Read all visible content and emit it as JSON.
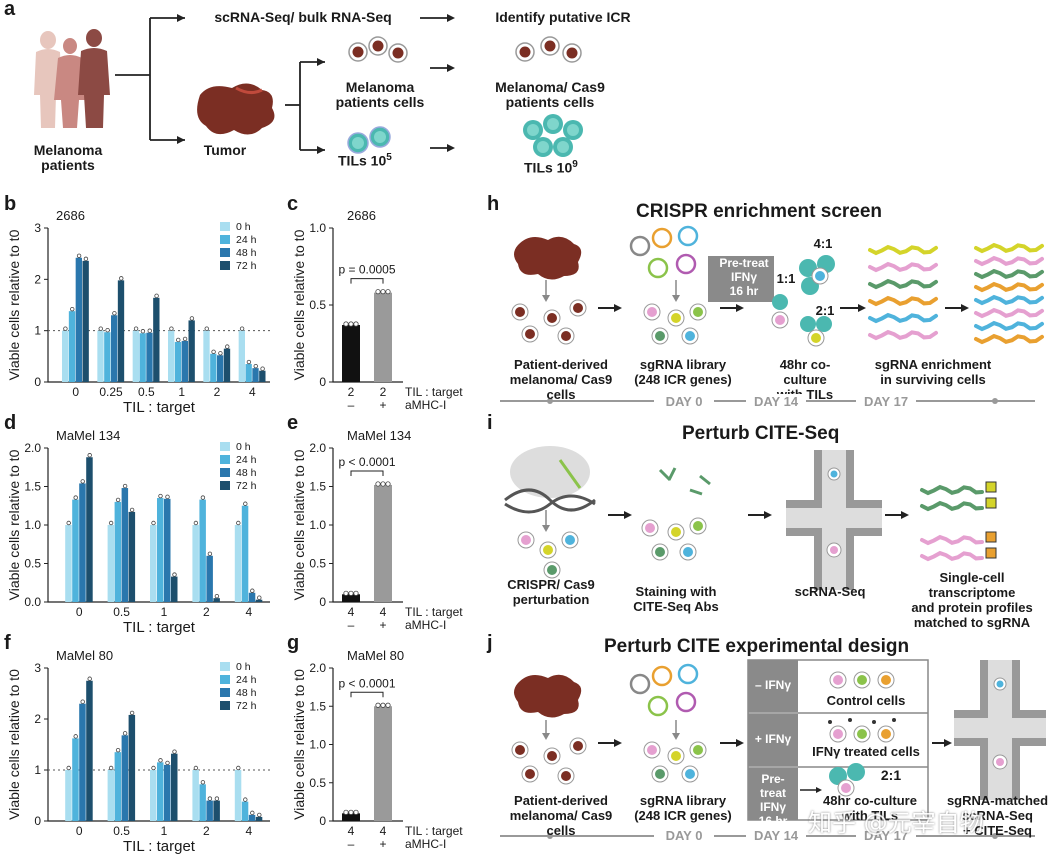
{
  "panel_labels": {
    "a": "a",
    "b": "b",
    "c": "c",
    "d": "d",
    "e": "e",
    "f": "f",
    "g": "g",
    "h": "h",
    "i": "i",
    "j": "j"
  },
  "panel_a": {
    "patients": "Melanoma\npatients",
    "tumor": "Tumor",
    "scrna": "scRNA-Seq/ bulk RNA-Seq",
    "identify": "Identify putative ICR",
    "mel_cells": "Melanoma\npatients cells",
    "mel_cas9": "Melanoma/ Cas9\npatients cells",
    "tils_5": "TILs 10",
    "tils_5_exp": "5",
    "tils_9": "TILs 10",
    "tils_9_exp": "9"
  },
  "colors": {
    "c0": "#a9def0",
    "c24": "#4fb3dc",
    "c48": "#2a77ad",
    "c72": "#1d4f6d",
    "black_bar": "#111111",
    "grey_bar": "#9a9a9a"
  },
  "chart_data": [
    {
      "id": "b",
      "type": "bar",
      "title": "2686",
      "xlabel": "TIL : target",
      "ylabel": "Viable cells relative to t0",
      "ylim": [
        0,
        3
      ],
      "yticks": [
        0,
        1,
        2,
        3
      ],
      "reference_line": 1,
      "categories": [
        "0",
        "0.25",
        "0.5",
        "1",
        "2",
        "4"
      ],
      "series": [
        {
          "name": "0 h",
          "values": [
            1.0,
            1.0,
            1.0,
            1.0,
            1.0,
            1.0
          ]
        },
        {
          "name": "24 h",
          "values": [
            1.38,
            0.97,
            0.95,
            0.78,
            0.55,
            0.35
          ]
        },
        {
          "name": "48 h",
          "values": [
            2.42,
            1.3,
            0.96,
            0.8,
            0.52,
            0.27
          ]
        },
        {
          "name": "72 h",
          "values": [
            2.36,
            1.98,
            1.64,
            1.2,
            0.65,
            0.22
          ]
        }
      ]
    },
    {
      "id": "c",
      "type": "bar",
      "title": "2686",
      "ylabel": "Viable cells relative to t0",
      "ylim": [
        0,
        1.0
      ],
      "yticks": [
        0,
        0.5,
        1.0
      ],
      "categories": [
        "2",
        "2"
      ],
      "row1_label": "TIL : target",
      "row2_label": "aMHC-I",
      "row2": [
        "–",
        "+"
      ],
      "values": [
        0.37,
        0.58
      ],
      "pvalue": "p = 0.0005"
    },
    {
      "id": "d",
      "type": "bar",
      "title": "MaMel 134",
      "xlabel": "TIL : target",
      "ylabel": "Viable cells relative to t0",
      "ylim": [
        0,
        2.0
      ],
      "yticks": [
        0,
        0.5,
        1.0,
        1.5,
        2.0
      ],
      "categories": [
        "0",
        "0.5",
        "1",
        "2",
        "4"
      ],
      "series": [
        {
          "name": "0 h",
          "values": [
            1.0,
            1.0,
            1.0,
            1.0,
            1.0
          ]
        },
        {
          "name": "24 h",
          "values": [
            1.33,
            1.3,
            1.35,
            1.33,
            1.25
          ]
        },
        {
          "name": "48 h",
          "values": [
            1.54,
            1.48,
            1.34,
            0.6,
            0.12
          ]
        },
        {
          "name": "72 h",
          "values": [
            1.88,
            1.17,
            0.33,
            0.05,
            0.03
          ]
        }
      ]
    },
    {
      "id": "e",
      "type": "bar",
      "title": "MaMel 134",
      "ylabel": "Viable cells relative to t0",
      "ylim": [
        0,
        2.0
      ],
      "yticks": [
        0,
        0.5,
        1.0,
        1.5,
        2.0
      ],
      "categories": [
        "4",
        "4"
      ],
      "row1_label": "TIL : target",
      "row2_label": "aMHC-I",
      "row2": [
        "–",
        "+"
      ],
      "values": [
        0.1,
        1.52
      ],
      "pvalue": "p < 0.0001"
    },
    {
      "id": "f",
      "type": "bar",
      "title": "MaMel 80",
      "xlabel": "TIL : target",
      "ylabel": "Viable cells relative to t0",
      "ylim": [
        0,
        3
      ],
      "yticks": [
        0,
        1,
        2,
        3
      ],
      "reference_line": 1,
      "categories": [
        "0",
        "0.5",
        "1",
        "2",
        "4"
      ],
      "series": [
        {
          "name": "0 h",
          "values": [
            1.0,
            1.0,
            1.0,
            1.0,
            1.0
          ]
        },
        {
          "name": "24 h",
          "values": [
            1.62,
            1.35,
            1.15,
            0.72,
            0.38
          ]
        },
        {
          "name": "48 h",
          "values": [
            2.3,
            1.68,
            1.1,
            0.4,
            0.12
          ]
        },
        {
          "name": "72 h",
          "values": [
            2.75,
            2.08,
            1.32,
            0.4,
            0.08
          ]
        }
      ]
    },
    {
      "id": "g",
      "type": "bar",
      "title": "MaMel 80",
      "ylabel": "Viable cells relative to t0",
      "ylim": [
        0,
        2.0
      ],
      "yticks": [
        0,
        0.5,
        1.0,
        1.5,
        2.0
      ],
      "categories": [
        "4",
        "4"
      ],
      "row1_label": "TIL : target",
      "row2_label": "aMHC-I",
      "row2": [
        "–",
        "+"
      ],
      "values": [
        0.1,
        1.5
      ],
      "pvalue": "p < 0.0001"
    }
  ],
  "panel_h": {
    "title": "CRISPR enrichment screen",
    "pretreat": "Pre-treat\nIFNγ\n16 hr",
    "r41": "4:1",
    "r11": "1:1",
    "r21": "2:1",
    "lbl1": "Patient-derived\nmelanoma/ Cas9 cells",
    "lbl2": "sgRNA library\n(248 ICR genes)",
    "lbl3": "48hr co-culture\nwith TILs",
    "lbl4": "sgRNA enrichment\nin surviving cells",
    "day0": "DAY 0",
    "day14": "DAY 14",
    "day17": "DAY 17"
  },
  "panel_i": {
    "title": "Perturb CITE-Seq",
    "lbl1": "CRISPR/ Cas9\nperturbation",
    "lbl2": "Staining with\nCITE-Seq Abs",
    "lbl3": "scRNA-Seq",
    "lbl4": "Single-cell transcriptome\nand protein profiles\nmatched to sgRNA"
  },
  "panel_j": {
    "title": "Perturb CITE experimental design",
    "minus": "– IFNγ",
    "plus": "+ IFNγ",
    "pretreat": "Pre-treat\nIFNγ\n16 hr",
    "control": "Control cells",
    "treated": "IFNγ treated cells",
    "ratio": "2:1",
    "coculture": "48hr co-culture\nwith TILs",
    "lbl1": "Patient-derived\nmelanoma/ Cas9 cells",
    "lbl2": "sgRNA library\n(248 ICR genes)",
    "lbl3": "sgRNA-matched\nscRNA-Seq\n+ CITE-Seq",
    "day0": "DAY 0",
    "day14": "DAY 14",
    "day17": "DAY 17"
  },
  "watermark": "知乎 @元宰自物"
}
